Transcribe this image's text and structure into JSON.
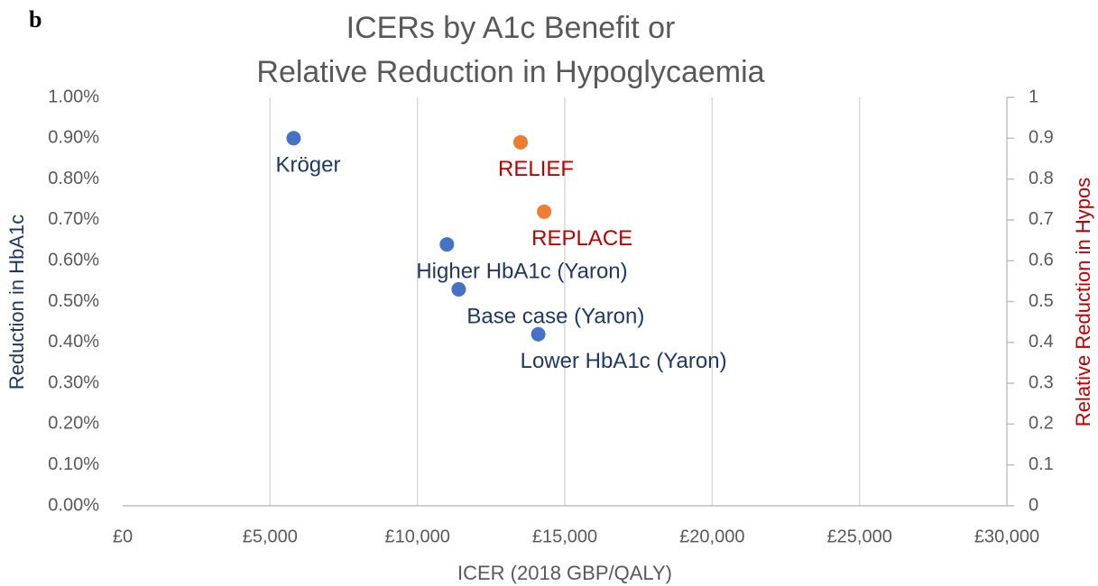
{
  "chart_data": {
    "type": "scatter",
    "panel": "b",
    "title": [
      "ICERs by A1c Benefit or",
      "Relative Reduction in Hypoglycaemia"
    ],
    "xlabel": "ICER (2018 GBP/QALY)",
    "ylabel": "Reduction in HbA1c",
    "y2label": "Relative Reduction in Hypos",
    "xlim": [
      0,
      30000
    ],
    "xticks": [
      {
        "value": 0,
        "label": "£0"
      },
      {
        "value": 5000,
        "label": "£5,000"
      },
      {
        "value": 10000,
        "label": "£10,000"
      },
      {
        "value": 15000,
        "label": "£15,000"
      },
      {
        "value": 20000,
        "label": "£20,000"
      },
      {
        "value": 25000,
        "label": "£25,000"
      },
      {
        "value": 30000,
        "label": "£30,000"
      }
    ],
    "ylim": [
      0,
      1
    ],
    "yticks": [
      {
        "value": 0,
        "label": "0.00%"
      },
      {
        "value": 0.1,
        "label": "0.10%"
      },
      {
        "value": 0.2,
        "label": "0.20%"
      },
      {
        "value": 0.3,
        "label": "0.30%"
      },
      {
        "value": 0.4,
        "label": "0.40%"
      },
      {
        "value": 0.5,
        "label": "0.50%"
      },
      {
        "value": 0.6,
        "label": "0.60%"
      },
      {
        "value": 0.7,
        "label": "0.70%"
      },
      {
        "value": 0.8,
        "label": "0.80%"
      },
      {
        "value": 0.9,
        "label": "0.90%"
      },
      {
        "value": 1,
        "label": "1.00%"
      }
    ],
    "y2lim": [
      0,
      1
    ],
    "y2ticks": [
      0,
      0.1,
      0.2,
      0.3,
      0.4,
      0.5,
      0.6,
      0.7,
      0.8,
      0.9,
      1
    ],
    "grid": true,
    "series": [
      {
        "color": "#4472c4",
        "label_color": "#1f3864",
        "axis": "y",
        "x": [
          5800,
          11000,
          11400,
          14100
        ],
        "values": [
          0.9,
          0.64,
          0.53,
          0.42
        ],
        "labels": [
          "Kröger",
          "Higher HbA1c (Yaron)",
          "Base case (Yaron)",
          "Lower HbA1c (Yaron)"
        ]
      },
      {
        "color": "#ed7d31",
        "label_color": "#c00000",
        "axis": "y2",
        "x": [
          13500,
          14300
        ],
        "values": [
          0.89,
          0.72
        ],
        "labels": [
          "RELIEF",
          "REPLACE"
        ]
      }
    ]
  }
}
